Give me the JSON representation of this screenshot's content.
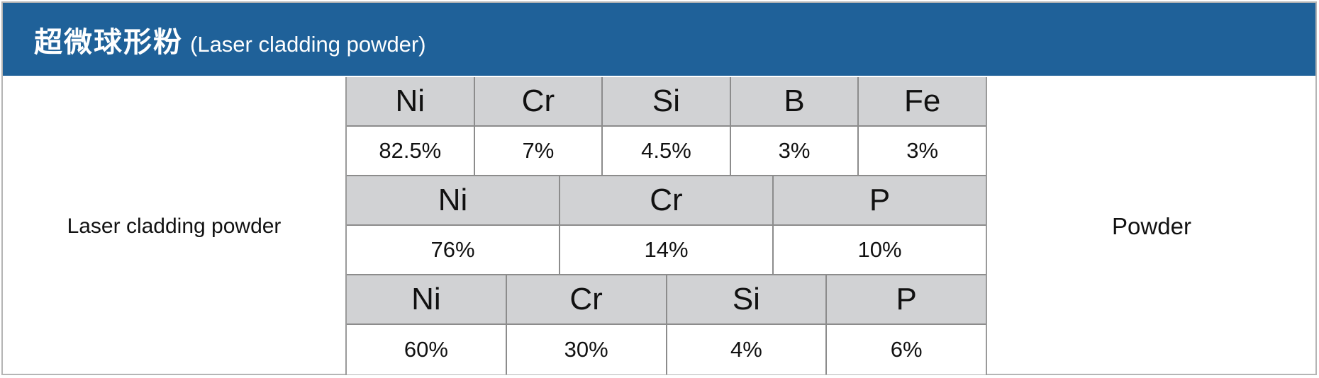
{
  "header": {
    "title_zh": "超微球形粉",
    "title_en": "(Laser cladding powder)"
  },
  "left_label": "Laser cladding powder",
  "right_label": "Powder",
  "compositions": [
    {
      "elements": [
        "Ni",
        "Cr",
        "Si",
        "B",
        "Fe"
      ],
      "values": [
        "82.5%",
        "7%",
        "4.5%",
        "3%",
        "3%"
      ]
    },
    {
      "elements": [
        "Ni",
        "Cr",
        "P"
      ],
      "values": [
        "76%",
        "14%",
        "10%"
      ]
    },
    {
      "elements": [
        "Ni",
        "Cr",
        "Si",
        "P"
      ],
      "values": [
        "60%",
        "30%",
        "4%",
        "6%"
      ]
    }
  ],
  "colors": {
    "header_bg": "#1f6199",
    "element_cell_bg": "#d1d2d4",
    "value_cell_bg": "#ffffff"
  }
}
